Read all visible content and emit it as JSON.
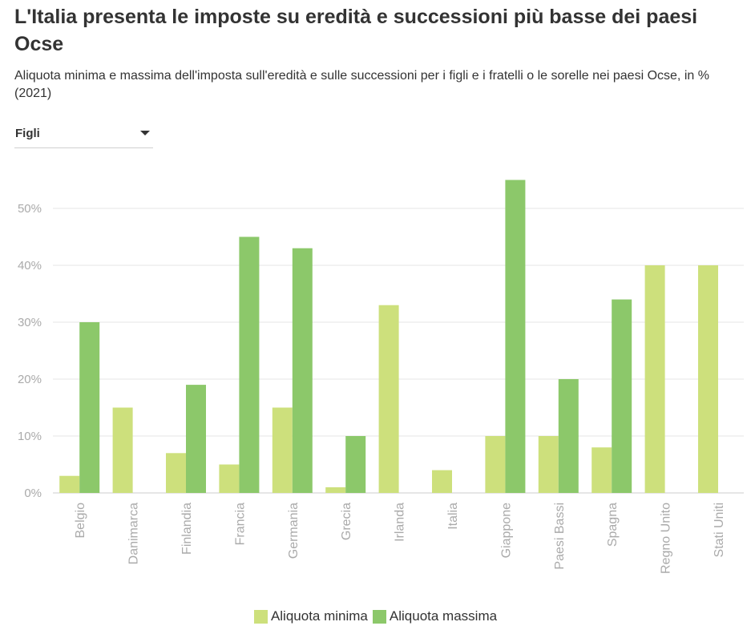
{
  "header": {
    "title": "L'Italia presenta le imposte su eredità e successioni più basse dei paesi Ocse",
    "subtitle": "Aliquota minima e massima dell'imposta sull'eredità e sulle successioni per i figli e i fratelli o le sorelle nei paesi Ocse, in % (2021)"
  },
  "filter": {
    "selected": "Figli"
  },
  "colors": {
    "minima": "#cde07c",
    "massima": "#8cc86a",
    "grid": "#e6e6e6",
    "axis_text": "#aaaaaa",
    "text": "#333333"
  },
  "chart_data": {
    "type": "bar",
    "title": "L'Italia presenta le imposte su eredità e successioni più basse dei paesi Ocse",
    "xlabel": "",
    "ylabel": "",
    "ylim": [
      0,
      55
    ],
    "yticks": [
      0,
      10,
      20,
      30,
      40,
      50
    ],
    "ytick_labels": [
      "0%",
      "10%",
      "20%",
      "30%",
      "40%",
      "50%"
    ],
    "grid": true,
    "legend_position": "bottom-center",
    "categories": [
      "Belgio",
      "Danimarca",
      "Finlandia",
      "Francia",
      "Germania",
      "Grecia",
      "Irlanda",
      "Italia",
      "Giappone",
      "Paesi Bassi",
      "Spagna",
      "Regno Unito",
      "Stati Uniti"
    ],
    "series": [
      {
        "name": "Aliquota minima",
        "color": "#cde07c",
        "values": [
          3,
          15,
          7,
          5,
          15,
          1,
          33,
          4,
          10,
          10,
          8,
          40,
          40
        ]
      },
      {
        "name": "Aliquota massima",
        "color": "#8cc86a",
        "values": [
          30,
          null,
          19,
          45,
          43,
          10,
          null,
          null,
          55,
          20,
          34,
          null,
          null
        ]
      }
    ]
  }
}
